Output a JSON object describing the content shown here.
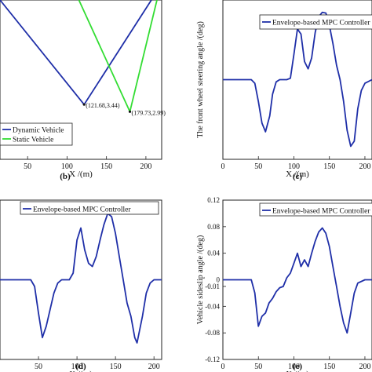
{
  "chart_data": [
    {
      "id": "b",
      "type": "line",
      "panel_label": "(b)",
      "xlabel": "X /(m)",
      "ylabel": "",
      "xlim": [
        15,
        220
      ],
      "ylim": [
        0,
        10
      ],
      "xticks": [
        50,
        100,
        150,
        200
      ],
      "grid": false,
      "legend_position": "bottom-left",
      "series": [
        {
          "name": "Dynamic Vehicle",
          "color": "#1f2fa8",
          "x": [
            15,
            121.68,
            207
          ],
          "y": [
            10,
            3.44,
            10
          ]
        },
        {
          "name": "Static Vehicle",
          "color": "#33dd33",
          "x": [
            115,
            179.73,
            214
          ],
          "y": [
            10,
            2.99,
            10
          ]
        }
      ],
      "annotations": [
        {
          "text": "(121.68,3.44)",
          "x": 121.68,
          "y": 3.44
        },
        {
          "text": "(179.73,2.99)",
          "x": 179.73,
          "y": 2.99
        }
      ]
    },
    {
      "id": "c",
      "type": "line",
      "panel_label": "(c)",
      "xlabel": "X /(m)",
      "ylabel": "The front wheel steering angle /(deg)",
      "xlim": [
        0,
        210
      ],
      "ylim": [
        -1.1,
        1.1
      ],
      "xticks": [
        0,
        50,
        100,
        150,
        200
      ],
      "grid": false,
      "legend_position": "top-right",
      "series": [
        {
          "name": "Envelope-based MPC Controller",
          "color": "#1f2fa8",
          "x": [
            0,
            40,
            45,
            50,
            55,
            60,
            66,
            70,
            75,
            80,
            90,
            95,
            100,
            105,
            110,
            115,
            120,
            125,
            130,
            135,
            140,
            145,
            150,
            155,
            160,
            165,
            170,
            175,
            180,
            185,
            190,
            195,
            200,
            210
          ],
          "y": [
            0,
            0,
            -0.05,
            -0.3,
            -0.6,
            -0.72,
            -0.5,
            -0.2,
            -0.03,
            0,
            0,
            0.02,
            0.35,
            0.7,
            0.63,
            0.25,
            0.15,
            0.3,
            0.65,
            0.87,
            0.93,
            0.92,
            0.75,
            0.5,
            0.2,
            0.0,
            -0.3,
            -0.7,
            -0.92,
            -0.85,
            -0.4,
            -0.15,
            -0.05,
            0
          ]
        }
      ]
    },
    {
      "id": "d",
      "type": "line",
      "panel_label": "(d)",
      "xlabel": "X /(m)",
      "ylabel": "",
      "xlim": [
        0,
        210
      ],
      "ylim": [
        -1.2,
        1.2
      ],
      "xticks": [
        50,
        100,
        150,
        200
      ],
      "grid": false,
      "legend_position": "top-right",
      "series": [
        {
          "name": "Envelope-based MPC Controller",
          "color": "#1f2fa8",
          "x": [
            0,
            40,
            45,
            50,
            55,
            60,
            65,
            70,
            75,
            80,
            90,
            95,
            100,
            105,
            110,
            115,
            120,
            125,
            130,
            135,
            140,
            145,
            150,
            155,
            160,
            165,
            170,
            175,
            178,
            185,
            190,
            195,
            200,
            210
          ],
          "y": [
            0,
            0,
            -0.1,
            -0.5,
            -0.87,
            -0.7,
            -0.45,
            -0.2,
            -0.05,
            0,
            0,
            0.1,
            0.6,
            0.78,
            0.45,
            0.25,
            0.2,
            0.35,
            0.6,
            0.83,
            1.0,
            0.95,
            0.7,
            0.35,
            0.0,
            -0.35,
            -0.55,
            -0.87,
            -0.95,
            -0.55,
            -0.2,
            -0.05,
            0,
            0
          ]
        }
      ]
    },
    {
      "id": "e",
      "type": "line",
      "panel_label": "(e)",
      "xlabel": "X /(m)",
      "ylabel": "Vehicle sideslip angle /(deg)",
      "xlim": [
        0,
        210
      ],
      "ylim": [
        -0.12,
        0.12
      ],
      "yticks": [
        -0.12,
        -0.08,
        -0.04,
        -0.01,
        0,
        0.04,
        0.08,
        0.12
      ],
      "xticks": [
        0,
        50,
        100,
        150,
        200
      ],
      "grid": false,
      "legend_position": "top-right",
      "series": [
        {
          "name": "Envelope-based MPC Controller",
          "color": "#1f2fa8",
          "x": [
            0,
            40,
            45,
            50,
            55,
            60,
            65,
            70,
            75,
            80,
            85,
            90,
            95,
            100,
            105,
            110,
            115,
            120,
            125,
            130,
            135,
            140,
            145,
            150,
            155,
            160,
            165,
            170,
            175,
            180,
            185,
            190,
            200,
            210
          ],
          "y": [
            0,
            0,
            -0.02,
            -0.07,
            -0.055,
            -0.05,
            -0.035,
            -0.028,
            -0.018,
            -0.012,
            -0.01,
            0.003,
            0.01,
            0.025,
            0.04,
            0.02,
            0.03,
            0.02,
            0.04,
            0.058,
            0.072,
            0.078,
            0.07,
            0.05,
            0.02,
            -0.01,
            -0.04,
            -0.065,
            -0.08,
            -0.05,
            -0.02,
            -0.005,
            0,
            0
          ]
        }
      ]
    }
  ]
}
